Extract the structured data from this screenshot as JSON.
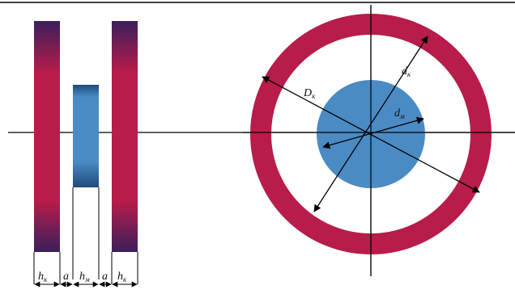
{
  "labels": {
    "h_k": "h",
    "h_k_sub": "к",
    "a": "a",
    "h_m": "h",
    "h_m_sub": "м",
    "D_k": "D",
    "D_k_sub": "к",
    "d_k": "d",
    "d_k_sub": "к",
    "d_m": "d",
    "d_m_sub": "м"
  },
  "colors": {
    "coil": "#B71C4A",
    "coil_dark": "#3B1F5C",
    "magnet": "#4A8BC4",
    "magnet_dark": "#1E4A7A",
    "line": "#000000"
  }
}
